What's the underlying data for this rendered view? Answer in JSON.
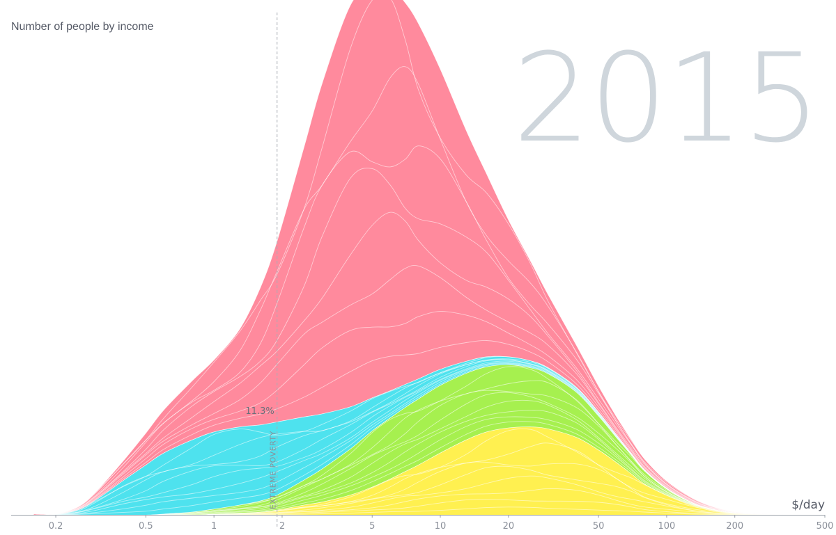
{
  "year": "2015",
  "y_axis_label": "Number of people by income",
  "x_unit": "$/day",
  "colors": {
    "asia_east": "#ff8a9d",
    "asia_south_africa": "#4ee2ee",
    "americas": "#a6f04f",
    "europe": "#fff050",
    "axis": "#9aa0a8",
    "year": "#cfd6dc"
  },
  "chart_data": {
    "type": "area",
    "title": "",
    "xlabel": "$/day",
    "ylabel": "Number of people by income",
    "x_scale": "log",
    "xlim": [
      0.127,
      500
    ],
    "ylim": [
      0,
      1
    ],
    "x_ticks": [
      {
        "value": 0.2,
        "label": "0.2"
      },
      {
        "value": 0.5,
        "label": "0.5"
      },
      {
        "value": 1,
        "label": "1"
      },
      {
        "value": 2,
        "label": "2"
      },
      {
        "value": 5,
        "label": "5"
      },
      {
        "value": 10,
        "label": "10"
      },
      {
        "value": 20,
        "label": "20"
      },
      {
        "value": 50,
        "label": "50"
      },
      {
        "value": 100,
        "label": "100"
      },
      {
        "value": 200,
        "label": "200"
      },
      {
        "value": 500,
        "label": "500"
      }
    ],
    "extreme_poverty": {
      "x": 1.9,
      "label": "EXTREME POVERTY",
      "share_label": "11.3%"
    },
    "x": [
      0.2,
      0.25,
      0.3,
      0.4,
      0.5,
      0.6,
      0.8,
      1,
      1.3,
      1.6,
      1.9,
      2.5,
      3,
      4,
      5,
      6,
      7,
      8,
      10,
      13,
      16,
      20,
      25,
      30,
      40,
      50,
      60,
      70,
      80,
      100,
      130,
      160,
      200,
      300,
      400,
      500
    ],
    "series": [
      {
        "color": "#fff050",
        "values": [
          0,
          0,
          0,
          0,
          0,
          0,
          0,
          0.002,
          0.004,
          0.006,
          0.01,
          0.02,
          0.026,
          0.04,
          0.056,
          0.072,
          0.087,
          0.1,
          0.124,
          0.15,
          0.166,
          0.174,
          0.176,
          0.172,
          0.155,
          0.13,
          0.105,
          0.082,
          0.062,
          0.04,
          0.02,
          0.01,
          0.004,
          0.001,
          0,
          0
        ]
      },
      {
        "color": "#a6f04f",
        "values": [
          0,
          0,
          0,
          0,
          0,
          0.002,
          0.006,
          0.01,
          0.016,
          0.022,
          0.03,
          0.05,
          0.066,
          0.092,
          0.112,
          0.122,
          0.128,
          0.132,
          0.135,
          0.133,
          0.13,
          0.126,
          0.118,
          0.11,
          0.09,
          0.068,
          0.05,
          0.037,
          0.026,
          0.012,
          0.004,
          0.002,
          0.001,
          0,
          0,
          0
        ]
      },
      {
        "color": "#4ee2ee",
        "values": [
          0.002,
          0.01,
          0.03,
          0.07,
          0.1,
          0.122,
          0.144,
          0.154,
          0.156,
          0.152,
          0.146,
          0.126,
          0.11,
          0.084,
          0.066,
          0.054,
          0.046,
          0.04,
          0.032,
          0.024,
          0.02,
          0.016,
          0.014,
          0.012,
          0.01,
          0.008,
          0.006,
          0.004,
          0.003,
          0.002,
          0.001,
          0,
          0,
          0,
          0,
          0
        ]
      },
      {
        "color": "#ff8a9d",
        "values": [
          0.001,
          0.006,
          0.016,
          0.04,
          0.064,
          0.086,
          0.118,
          0.144,
          0.196,
          0.274,
          0.362,
          0.54,
          0.66,
          0.802,
          0.822,
          0.808,
          0.762,
          0.71,
          0.6,
          0.462,
          0.366,
          0.274,
          0.2,
          0.146,
          0.084,
          0.052,
          0.036,
          0.027,
          0.021,
          0.014,
          0.009,
          0.005,
          0.002,
          0.001,
          0,
          0
        ]
      }
    ]
  }
}
